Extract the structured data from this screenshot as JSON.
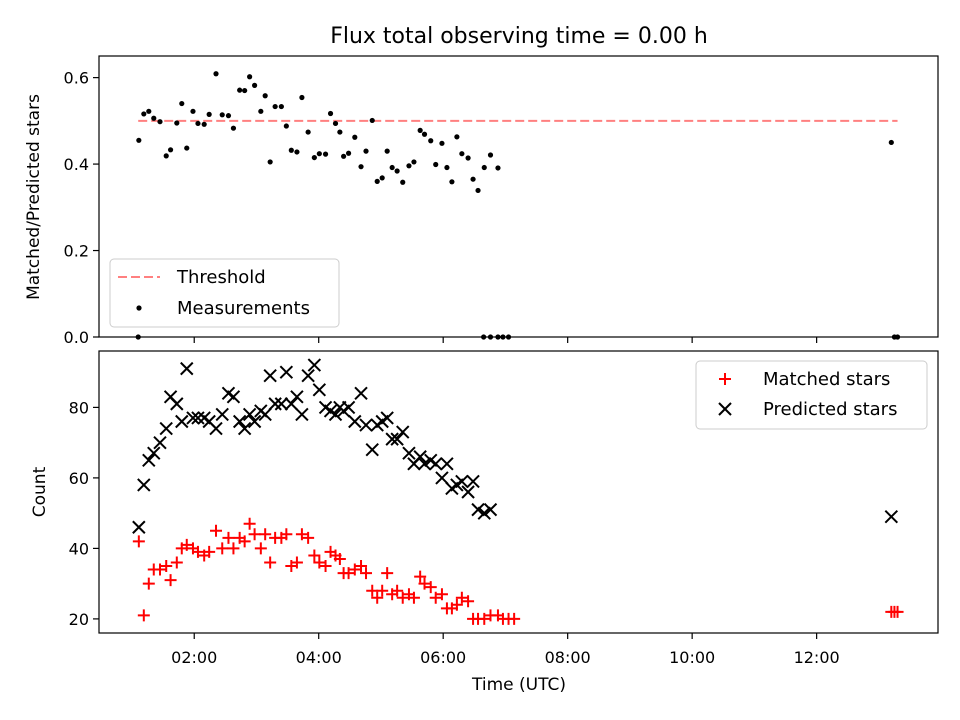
{
  "chart_data": {
    "title": "Flux total observing time = 0.00 h",
    "xlabel": "Time (UTC)",
    "x_unit": "hours UTC",
    "xlim": [
      0.47,
      13.95
    ],
    "xticks": [
      2,
      4,
      6,
      8,
      10,
      12
    ],
    "xtick_labels": [
      "02:00",
      "04:00",
      "06:00",
      "08:00",
      "10:00",
      "12:00"
    ],
    "colors": {
      "threshold": "#ff8080",
      "measurements": "#000000",
      "matched": "#ff0000",
      "predicted": "#000000"
    },
    "panels": [
      {
        "type": "scatter",
        "ylabel": "Matched/Predicted stars",
        "ylim": [
          0,
          0.65
        ],
        "yticks": [
          0,
          0.2,
          0.4,
          0.6
        ],
        "ytick_labels": [
          "0.0",
          "0.2",
          "0.4",
          "0.6"
        ],
        "legend": {
          "position": "lower-left",
          "entries": [
            "Threshold",
            "Measurements"
          ]
        },
        "threshold": {
          "name": "Threshold",
          "y": 0.5,
          "x": [
            1.1,
            13.3
          ]
        },
        "series": [
          {
            "name": "Measurements",
            "marker": "dot",
            "points": [
              [
                1.11,
                0.455
              ],
              [
                1.19,
                0.516
              ],
              [
                1.27,
                0.522
              ],
              [
                1.35,
                0.506
              ],
              [
                1.45,
                0.498
              ],
              [
                1.55,
                0.419
              ],
              [
                1.62,
                0.433
              ],
              [
                1.72,
                0.495
              ],
              [
                1.8,
                0.54
              ],
              [
                1.88,
                0.437
              ],
              [
                1.98,
                0.522
              ],
              [
                2.06,
                0.494
              ],
              [
                2.16,
                0.492
              ],
              [
                2.24,
                0.515
              ],
              [
                2.35,
                0.609
              ],
              [
                2.45,
                0.514
              ],
              [
                2.55,
                0.512
              ],
              [
                2.63,
                0.483
              ],
              [
                2.73,
                0.571
              ],
              [
                2.81,
                0.57
              ],
              [
                2.89,
                0.602
              ],
              [
                2.97,
                0.582
              ],
              [
                3.07,
                0.522
              ],
              [
                3.14,
                0.558
              ],
              [
                3.22,
                0.405
              ],
              [
                3.3,
                0.533
              ],
              [
                3.4,
                0.533
              ],
              [
                3.48,
                0.488
              ],
              [
                3.56,
                0.432
              ],
              [
                3.65,
                0.428
              ],
              [
                3.73,
                0.554
              ],
              [
                3.83,
                0.474
              ],
              [
                3.93,
                0.415
              ],
              [
                4.01,
                0.424
              ],
              [
                4.11,
                0.423
              ],
              [
                4.19,
                0.517
              ],
              [
                4.27,
                0.494
              ],
              [
                4.34,
                0.474
              ],
              [
                4.4,
                0.418
              ],
              [
                4.48,
                0.425
              ],
              [
                4.58,
                0.462
              ],
              [
                4.68,
                0.394
              ],
              [
                4.76,
                0.43
              ],
              [
                4.86,
                0.501
              ],
              [
                4.94,
                0.36
              ],
              [
                5.02,
                0.368
              ],
              [
                5.1,
                0.43
              ],
              [
                5.18,
                0.392
              ],
              [
                5.26,
                0.384
              ],
              [
                5.35,
                0.358
              ],
              [
                5.45,
                0.396
              ],
              [
                5.53,
                0.405
              ],
              [
                5.63,
                0.478
              ],
              [
                5.7,
                0.469
              ],
              [
                5.8,
                0.454
              ],
              [
                5.88,
                0.399
              ],
              [
                5.98,
                0.448
              ],
              [
                6.06,
                0.392
              ],
              [
                6.14,
                0.359
              ],
              [
                6.22,
                0.463
              ],
              [
                6.3,
                0.424
              ],
              [
                6.4,
                0.414
              ],
              [
                6.48,
                0.365
              ],
              [
                6.56,
                0.339
              ],
              [
                6.66,
                0.392
              ],
              [
                6.76,
                0.421
              ],
              [
                6.88,
                0.391
              ],
              [
                1.1,
                0.0
              ],
              [
                6.65,
                0.0
              ],
              [
                6.76,
                0.0
              ],
              [
                6.88,
                0.0
              ],
              [
                6.96,
                0.0
              ],
              [
                7.05,
                0.0
              ],
              [
                13.2,
                0.45
              ],
              [
                13.25,
                0.0
              ],
              [
                13.3,
                0.0
              ]
            ]
          }
        ]
      },
      {
        "type": "scatter",
        "ylabel": "Count",
        "ylim": [
          16,
          96
        ],
        "yticks": [
          20,
          40,
          60,
          80
        ],
        "ytick_labels": [
          "20",
          "40",
          "60",
          "80"
        ],
        "legend": {
          "position": "upper-right",
          "entries": [
            "Matched stars",
            "Predicted stars"
          ]
        },
        "series": [
          {
            "name": "Matched stars",
            "marker": "plus",
            "points": [
              [
                1.11,
                42
              ],
              [
                1.19,
                21
              ],
              [
                1.27,
                30
              ],
              [
                1.35,
                34
              ],
              [
                1.45,
                34
              ],
              [
                1.55,
                35
              ],
              [
                1.62,
                31
              ],
              [
                1.72,
                36
              ],
              [
                1.8,
                40
              ],
              [
                1.88,
                41
              ],
              [
                1.98,
                40
              ],
              [
                2.06,
                39
              ],
              [
                2.16,
                38
              ],
              [
                2.24,
                39
              ],
              [
                2.35,
                45
              ],
              [
                2.45,
                40
              ],
              [
                2.55,
                43
              ],
              [
                2.63,
                40
              ],
              [
                2.73,
                43
              ],
              [
                2.81,
                42
              ],
              [
                2.89,
                47
              ],
              [
                2.97,
                44
              ],
              [
                3.07,
                40
              ],
              [
                3.14,
                44
              ],
              [
                3.22,
                36
              ],
              [
                3.3,
                43
              ],
              [
                3.4,
                43
              ],
              [
                3.48,
                44
              ],
              [
                3.56,
                35
              ],
              [
                3.65,
                36
              ],
              [
                3.73,
                44
              ],
              [
                3.83,
                43
              ],
              [
                3.93,
                38
              ],
              [
                4.01,
                36
              ],
              [
                4.11,
                35
              ],
              [
                4.19,
                39
              ],
              [
                4.27,
                38
              ],
              [
                4.34,
                37
              ],
              [
                4.4,
                33
              ],
              [
                4.48,
                33
              ],
              [
                4.58,
                34
              ],
              [
                4.68,
                35
              ],
              [
                4.76,
                33
              ],
              [
                4.86,
                28
              ],
              [
                4.94,
                26
              ],
              [
                5.02,
                28
              ],
              [
                5.1,
                33
              ],
              [
                5.18,
                27
              ],
              [
                5.26,
                28
              ],
              [
                5.35,
                26
              ],
              [
                5.45,
                27
              ],
              [
                5.53,
                26
              ],
              [
                5.63,
                32
              ],
              [
                5.7,
                30
              ],
              [
                5.8,
                29
              ],
              [
                5.88,
                26
              ],
              [
                5.98,
                27
              ],
              [
                6.06,
                23
              ],
              [
                6.14,
                23
              ],
              [
                6.22,
                24
              ],
              [
                6.3,
                26
              ],
              [
                6.4,
                25
              ],
              [
                6.48,
                20
              ],
              [
                6.56,
                20
              ],
              [
                6.66,
                20
              ],
              [
                6.76,
                21
              ],
              [
                6.88,
                21
              ],
              [
                6.96,
                20
              ],
              [
                7.05,
                20
              ],
              [
                7.14,
                20
              ],
              [
                13.2,
                22
              ],
              [
                13.25,
                22
              ],
              [
                13.3,
                22
              ]
            ]
          },
          {
            "name": "Predicted stars",
            "marker": "x",
            "points": [
              [
                1.11,
                46
              ],
              [
                1.19,
                58
              ],
              [
                1.27,
                65
              ],
              [
                1.35,
                67
              ],
              [
                1.45,
                70
              ],
              [
                1.55,
                74
              ],
              [
                1.62,
                83
              ],
              [
                1.72,
                81
              ],
              [
                1.8,
                76
              ],
              [
                1.88,
                91
              ],
              [
                1.98,
                77
              ],
              [
                2.06,
                77
              ],
              [
                2.16,
                77
              ],
              [
                2.24,
                76
              ],
              [
                2.35,
                74
              ],
              [
                2.45,
                78
              ],
              [
                2.55,
                84
              ],
              [
                2.63,
                83
              ],
              [
                2.73,
                76
              ],
              [
                2.81,
                74
              ],
              [
                2.89,
                78
              ],
              [
                2.97,
                76
              ],
              [
                3.07,
                79
              ],
              [
                3.14,
                78
              ],
              [
                3.22,
                89
              ],
              [
                3.3,
                81
              ],
              [
                3.4,
                81
              ],
              [
                3.48,
                90
              ],
              [
                3.56,
                81
              ],
              [
                3.65,
                83
              ],
              [
                3.73,
                78
              ],
              [
                3.83,
                89
              ],
              [
                3.93,
                92
              ],
              [
                4.01,
                85
              ],
              [
                4.11,
                80
              ],
              [
                4.19,
                79
              ],
              [
                4.27,
                78
              ],
              [
                4.34,
                80
              ],
              [
                4.4,
                79
              ],
              [
                4.48,
                80
              ],
              [
                4.58,
                76
              ],
              [
                4.68,
                84
              ],
              [
                4.76,
                75
              ],
              [
                4.86,
                68
              ],
              [
                4.94,
                75
              ],
              [
                5.02,
                76
              ],
              [
                5.1,
                77
              ],
              [
                5.18,
                71
              ],
              [
                5.26,
                71
              ],
              [
                5.35,
                73
              ],
              [
                5.45,
                67
              ],
              [
                5.53,
                64
              ],
              [
                5.63,
                66
              ],
              [
                5.7,
                64
              ],
              [
                5.8,
                65
              ],
              [
                5.88,
                64
              ],
              [
                5.98,
                60
              ],
              [
                6.06,
                64
              ],
              [
                6.14,
                57
              ],
              [
                6.22,
                58
              ],
              [
                6.3,
                59
              ],
              [
                6.4,
                56
              ],
              [
                6.48,
                59
              ],
              [
                6.56,
                51
              ],
              [
                6.66,
                50
              ],
              [
                6.76,
                51
              ],
              [
                13.2,
                49
              ]
            ]
          }
        ]
      }
    ]
  }
}
